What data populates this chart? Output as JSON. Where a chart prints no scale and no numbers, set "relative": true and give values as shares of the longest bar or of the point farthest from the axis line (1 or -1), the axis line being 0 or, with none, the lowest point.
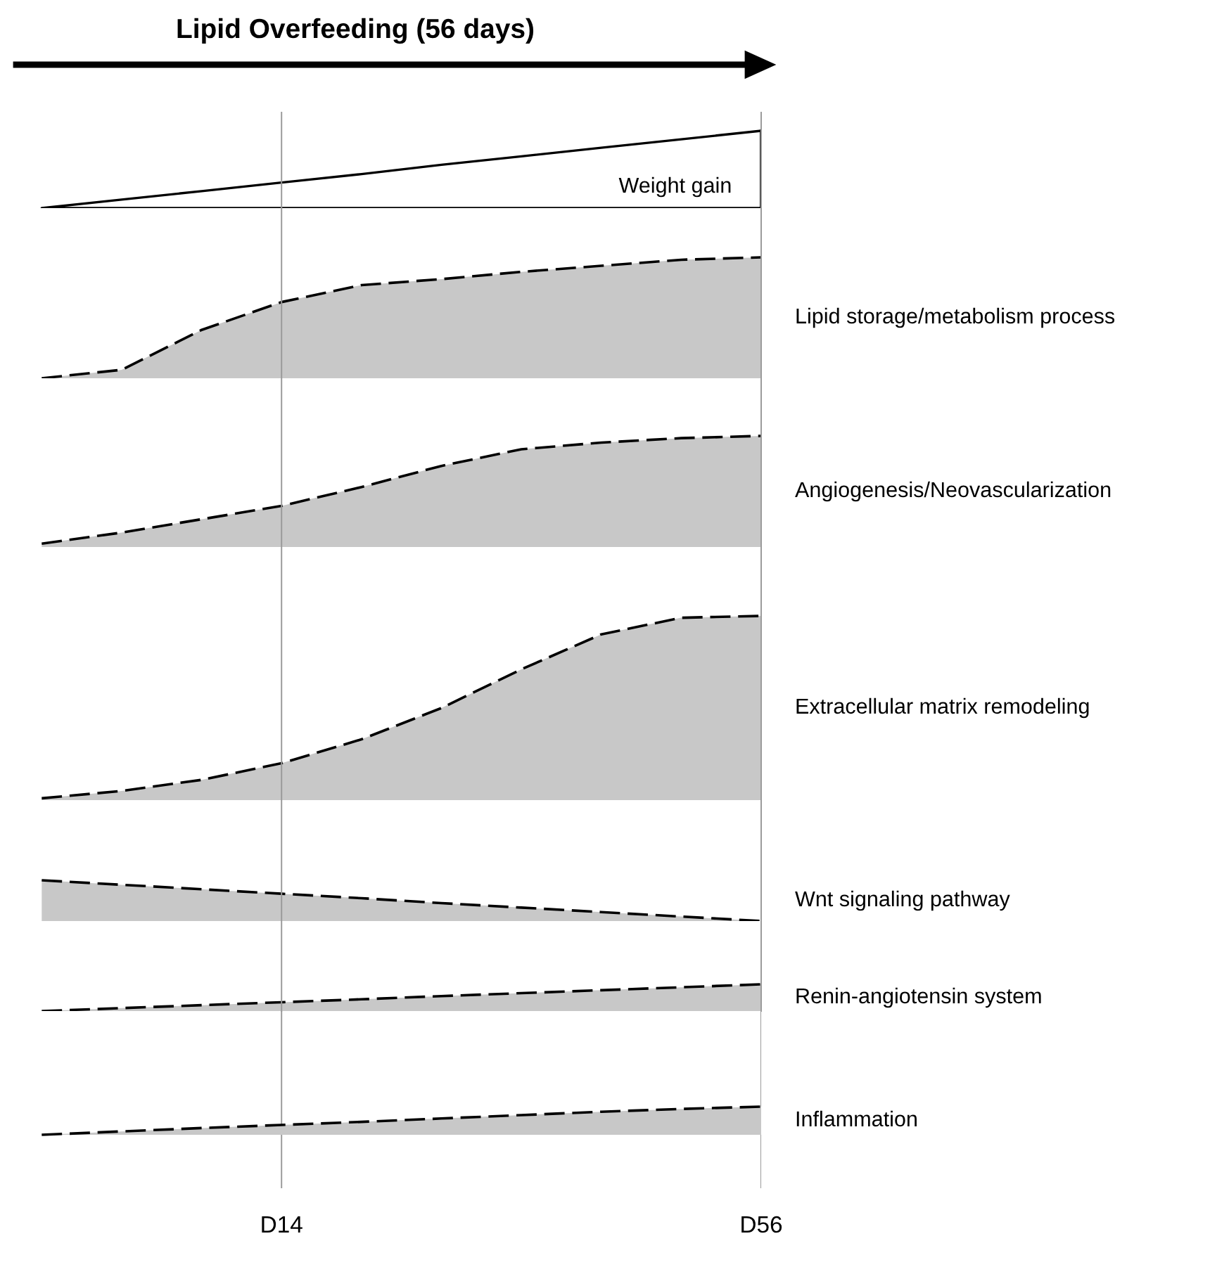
{
  "chart_data": [
    {
      "type": "area",
      "title": "Lipid Overfeeding (56 days)",
      "annotations": [
        "Weight gain"
      ],
      "relative": true,
      "line_style": "solid",
      "categories": [
        null,
        null,
        null,
        null,
        null,
        null,
        null,
        null,
        null,
        null
      ],
      "series": [
        {
          "color": "#ffffff",
          "values": [
            0,
            0.11,
            0.22,
            0.33,
            0.44,
            0.56,
            0.67,
            0.78,
            0.89,
            1
          ]
        }
      ]
    },
    {
      "type": "area",
      "title": "Lipid storage/metabolism process",
      "relative": true,
      "line_style": "dashed",
      "categories": [
        null,
        null,
        null,
        null,
        null,
        null,
        null,
        null,
        null,
        null
      ],
      "series": [
        {
          "color": "#c8c8c8",
          "values": [
            0,
            0.07,
            0.4,
            0.63,
            0.77,
            0.82,
            0.88,
            0.93,
            0.98,
            1
          ]
        }
      ]
    },
    {
      "type": "area",
      "title": "Angiogenesis/Neovascularization",
      "relative": true,
      "line_style": "dashed",
      "categories": [
        null,
        null,
        null,
        null,
        null,
        null,
        null,
        null,
        null,
        null
      ],
      "series": [
        {
          "color": "#c8c8c8",
          "values": [
            0.03,
            0.13,
            0.25,
            0.37,
            0.54,
            0.73,
            0.88,
            0.94,
            0.98,
            1
          ]
        }
      ]
    },
    {
      "type": "area",
      "title": "Extracellular matrix remodeling",
      "relative": true,
      "line_style": "dashed",
      "categories": [
        null,
        null,
        null,
        null,
        null,
        null,
        null,
        null,
        null,
        null
      ],
      "series": [
        {
          "color": "#c8c8c8",
          "values": [
            0.01,
            0.05,
            0.11,
            0.2,
            0.33,
            0.5,
            0.71,
            0.9,
            0.99,
            1
          ]
        }
      ]
    },
    {
      "type": "area",
      "title": "Wnt signaling pathway",
      "relative": true,
      "line_style": "dashed",
      "categories": [
        null,
        null,
        null,
        null,
        null,
        null,
        null,
        null,
        null,
        null
      ],
      "series": [
        {
          "color": "#c8c8c8",
          "values": [
            1,
            0.89,
            0.78,
            0.67,
            0.56,
            0.44,
            0.33,
            0.22,
            0.11,
            0
          ]
        }
      ]
    },
    {
      "type": "area",
      "title": "Renin-angiotensin system",
      "relative": true,
      "line_style": "dashed",
      "categories": [
        null,
        null,
        null,
        null,
        null,
        null,
        null,
        null,
        null,
        null
      ],
      "series": [
        {
          "color": "#c8c8c8",
          "values": [
            0,
            0.11,
            0.22,
            0.33,
            0.44,
            0.56,
            0.67,
            0.78,
            0.89,
            1
          ]
        }
      ]
    },
    {
      "type": "area",
      "title": "Inflammation",
      "relative": true,
      "line_style": "dashed",
      "categories": [
        null,
        null,
        null,
        "D14",
        null,
        null,
        null,
        null,
        null,
        "D56"
      ],
      "grid": "x",
      "series": [
        {
          "color": "#c8c8c8",
          "values": [
            0,
            0.12,
            0.24,
            0.35,
            0.46,
            0.58,
            0.7,
            0.82,
            0.92,
            1
          ]
        }
      ]
    }
  ]
}
